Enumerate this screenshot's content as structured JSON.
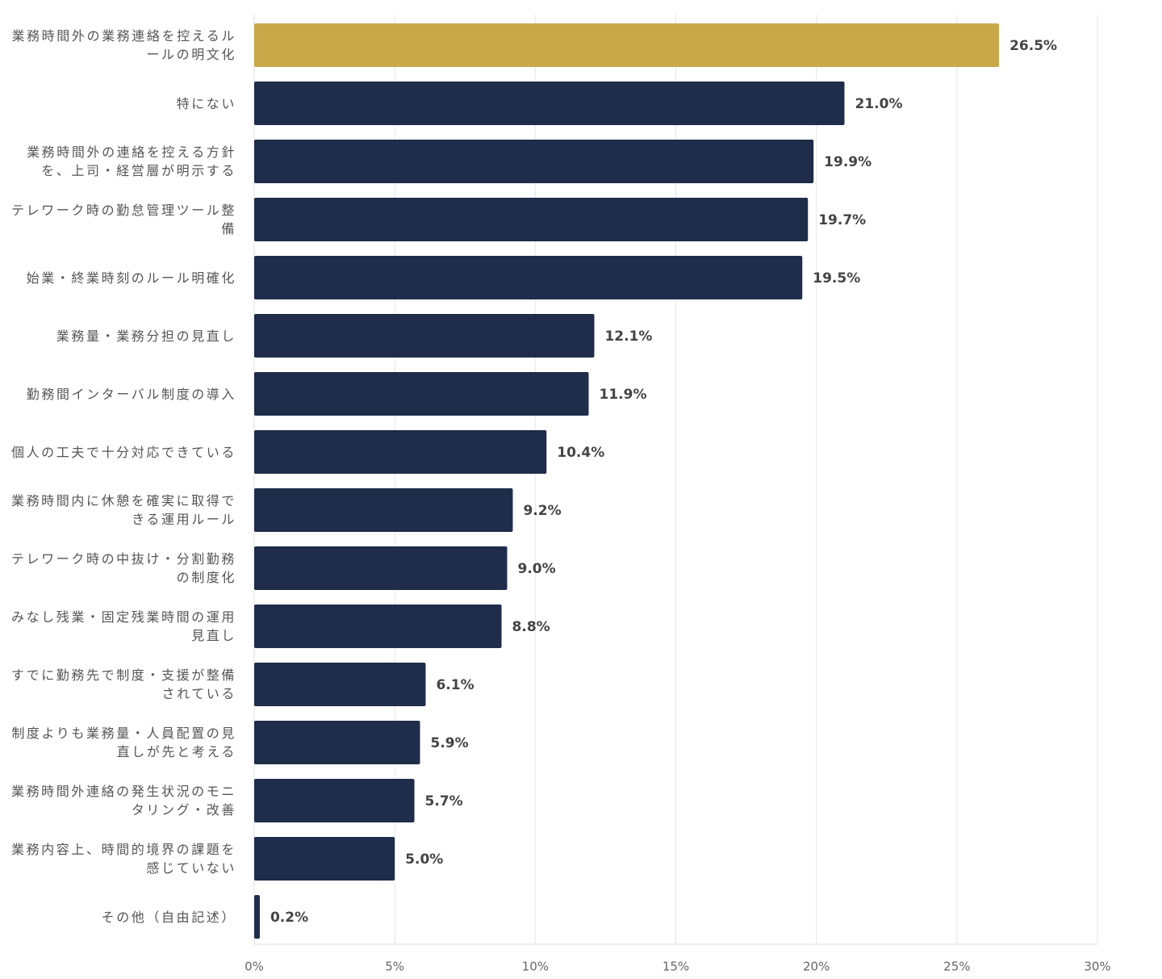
{
  "chart_data": {
    "type": "barh",
    "categories": [
      "業務時間外の業務連絡を控えるルールの明文化",
      "特にない",
      "業務時間外の連絡を控える方針を、上司・経営層が明示する",
      "テレワーク時の勤怠管理ツール整備",
      "始業・終業時刻のルール明確化",
      "業務量・業務分担の見直し",
      "勤務間インターバル制度の導入",
      "個人の工夫で十分対応できている",
      "業務時間内に休憩を確実に取得できる運用ルール",
      "テレワーク時の中抜け・分割勤務の制度化",
      "みなし残業・固定残業時間の運用見直し",
      "すでに勤務先で制度・支援が整備されている",
      "制度よりも業務量・人員配置の見直しが先と考える",
      "業務時間外連絡の発生状況のモニタリング・改善",
      "業務内容上、時間的境界の課題を感じていない",
      "その他（自由記述）"
    ],
    "values": [
      26.5,
      21.0,
      19.9,
      19.7,
      19.5,
      12.1,
      11.9,
      10.4,
      9.2,
      9.0,
      8.8,
      6.1,
      5.9,
      5.7,
      5.0,
      0.2
    ],
    "value_labels": [
      "26.5%",
      "21.0%",
      "19.9%",
      "19.7%",
      "19.5%",
      "12.1%",
      "11.9%",
      "10.4%",
      "9.2%",
      "9.0%",
      "8.8%",
      "6.1%",
      "5.9%",
      "5.7%",
      "5.0%",
      "0.2%"
    ],
    "colors": [
      "#c9a84a",
      "#1f2c4a",
      "#1f2c4a",
      "#1f2c4a",
      "#1f2c4a",
      "#1f2c4a",
      "#1f2c4a",
      "#1f2c4a",
      "#1f2c4a",
      "#1f2c4a",
      "#1f2c4a",
      "#1f2c4a",
      "#1f2c4a",
      "#1f2c4a",
      "#1f2c4a",
      "#1f2c4a"
    ],
    "xlim": [
      0,
      30
    ],
    "xticks": [
      {
        "value": 0,
        "label": "0%"
      },
      {
        "value": 5,
        "label": "5%"
      },
      {
        "value": 10,
        "label": "10%"
      },
      {
        "value": 15,
        "label": "15%"
      },
      {
        "value": 20,
        "label": "20%"
      },
      {
        "value": 25,
        "label": "25%"
      },
      {
        "value": 30,
        "label": "30%"
      }
    ],
    "grid": true
  }
}
